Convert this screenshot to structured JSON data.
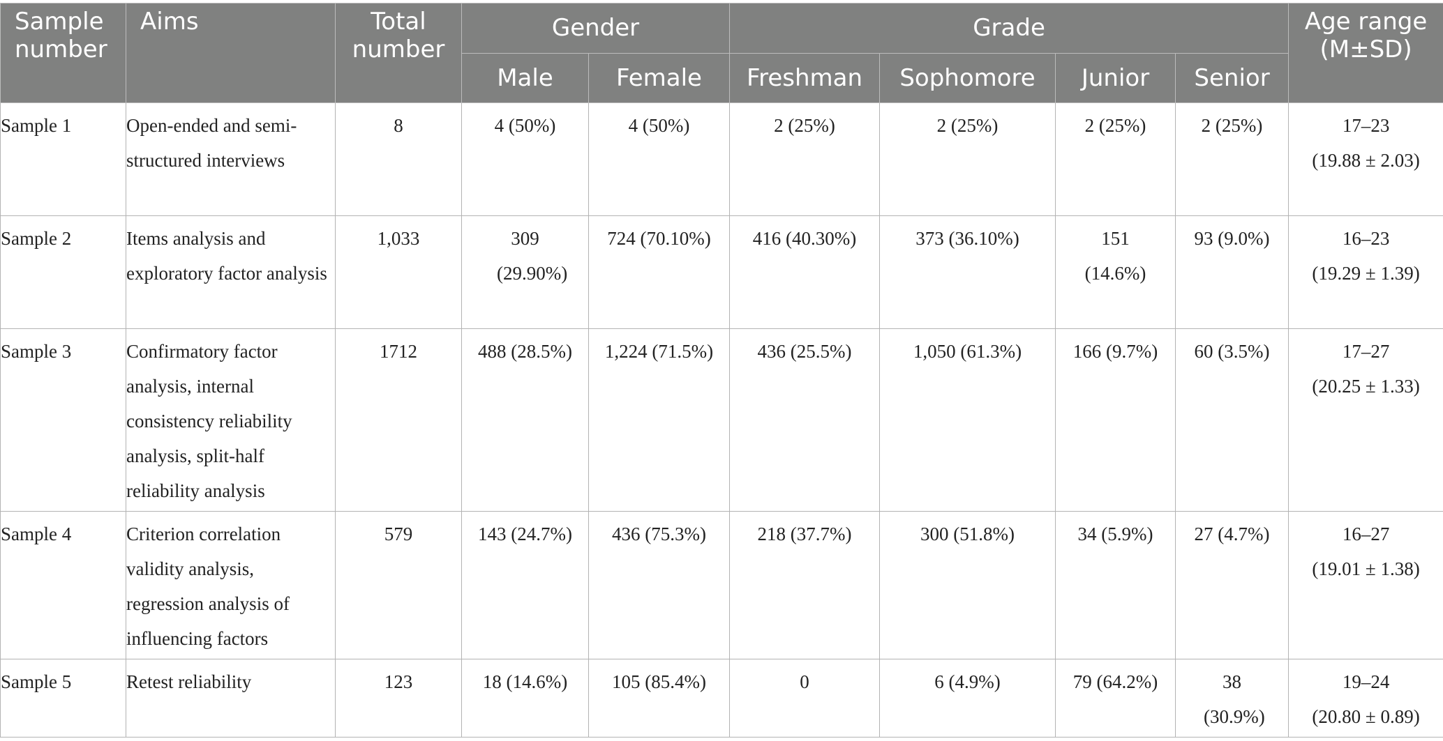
{
  "table": {
    "headers": {
      "sample_number": "Sample number",
      "aims": "Aims",
      "total_number": "Total number",
      "gender": "Gender",
      "male": "Male",
      "female": "Female",
      "grade": "Grade",
      "freshman": "Freshman",
      "sophomore": "Sophomore",
      "junior": "Junior",
      "senior": "Senior",
      "age_range": "Age range (M±SD)"
    },
    "rows": [
      {
        "sample": "Sample 1",
        "aims": "Open-ended and semi-structured interviews",
        "total": "8",
        "male": "4 (50%)",
        "female": "4 (50%)",
        "freshman": "2 (25%)",
        "sophomore": "2 (25%)",
        "junior": "2 (25%)",
        "senior": "2 (25%)",
        "age_range": "17–23",
        "age_msd": "(19.88 ± 2.03)"
      },
      {
        "sample": "Sample 2",
        "aims": "Items analysis and exploratory factor analysis",
        "total": "1,033",
        "male": "309 (29.90%)",
        "female": "724 (70.10%)",
        "freshman": "416 (40.30%)",
        "sophomore": "373 (36.10%)",
        "junior": "151 (14.6%)",
        "senior": "93 (9.0%)",
        "age_range": "16–23",
        "age_msd": "(19.29 ± 1.39)"
      },
      {
        "sample": "Sample 3",
        "aims": "Confirmatory factor analysis, internal consistency reliability analysis, split-half reliability analysis",
        "total": "1712",
        "male": "488 (28.5%)",
        "female": "1,224 (71.5%)",
        "freshman": "436 (25.5%)",
        "sophomore": "1,050 (61.3%)",
        "junior": "166 (9.7%)",
        "senior": "60 (3.5%)",
        "age_range": "17–27",
        "age_msd": "(20.25 ± 1.33)"
      },
      {
        "sample": "Sample 4",
        "aims": "Criterion correlation validity analysis, regression analysis of influencing factors",
        "total": "579",
        "male": "143 (24.7%)",
        "female": "436 (75.3%)",
        "freshman": "218 (37.7%)",
        "sophomore": "300 (51.8%)",
        "junior": "34 (5.9%)",
        "senior": "27 (4.7%)",
        "age_range": "16–27",
        "age_msd": "(19.01 ± 1.38)"
      },
      {
        "sample": "Sample 5",
        "aims": "Retest reliability",
        "total": "123",
        "male": "18 (14.6%)",
        "female": "105 (85.4%)",
        "freshman": "0",
        "sophomore": "6 (4.9%)",
        "junior": "79 (64.2%)",
        "senior": "38 (30.9%)",
        "age_range": "19–24",
        "age_msd": "(20.80 ± 0.89)"
      }
    ]
  }
}
